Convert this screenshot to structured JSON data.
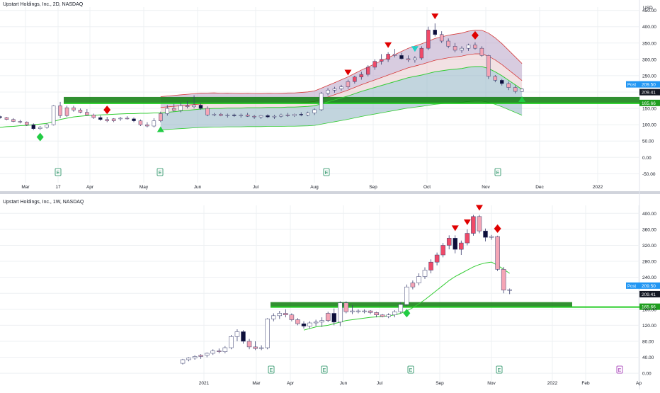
{
  "top": {
    "title": "Upstart Holdings, Inc., 2D, NASDAQ",
    "y_unit": "USD",
    "y_ticks": [
      "450.00",
      "400.00",
      "350.00",
      "300.00",
      "250.00",
      "200.00",
      "150.00",
      "100.00",
      "50.00",
      "0.00",
      "-50.00"
    ],
    "x_ticks": [
      "Mar",
      "17",
      "Apr",
      "May",
      "Jun",
      "Jul",
      "Aug",
      "Sep",
      "Oct",
      "Nov",
      "Dec",
      "2022"
    ],
    "price_labels": {
      "post_tag": "Post",
      "post": "209.50",
      "last": "209.41",
      "level": "165.66"
    },
    "earnings_marker": "E"
  },
  "bottom": {
    "title": "Upstart Holdings, Inc., 1W, NASDAQ",
    "y_ticks": [
      "400.00",
      "360.00",
      "320.00",
      "280.00",
      "240.00",
      "200.00",
      "160.00",
      "120.00",
      "80.00",
      "40.00",
      "0.00"
    ],
    "x_ticks": [
      "2021",
      "Mar",
      "Apr",
      "Jun",
      "Jul",
      "Sep",
      "Nov",
      "2022",
      "Feb",
      "Ap"
    ],
    "price_labels": {
      "post_tag": "Post",
      "post": "209.50",
      "last": "209.41",
      "level": "165.66"
    },
    "earnings_marker": "E"
  },
  "colors": {
    "up": "#ffffff",
    "down": "#0d0f3a",
    "pink": "#f5a5b5",
    "red_candle": "#f04a68",
    "ma_green": "#33cc33",
    "level_green": "#22cc22",
    "zone_green": "#0d7d0d",
    "band_red": "#d63a3a",
    "marker_red": "#e00000",
    "marker_green": "#22cc44",
    "marker_cyan": "#20d0c8",
    "post_blue": "#2196f3",
    "grid": "#eef0f3"
  },
  "chart_data": [
    {
      "type": "candlestick",
      "title": "Upstart Holdings, Inc., 2D, NASDAQ",
      "ylabel": "USD",
      "ylim": [
        -60,
        460
      ],
      "x_ticks": [
        "Mar",
        "17",
        "Apr",
        "May",
        "Jun",
        "Jul",
        "Aug",
        "Sep",
        "Oct",
        "Nov",
        "Dec",
        "2022"
      ],
      "levels": {
        "support_line": 165.66,
        "zone": [
          165.66,
          185
        ]
      },
      "last": 209.41,
      "post": 209.5,
      "ohlc": [
        [
          0,
          125,
          128,
          118,
          122
        ],
        [
          1,
          122,
          124,
          114,
          116
        ],
        [
          2,
          116,
          120,
          108,
          110
        ],
        [
          3,
          110,
          115,
          104,
          108
        ],
        [
          4,
          108,
          110,
          96,
          100
        ],
        [
          5,
          100,
          104,
          84,
          88
        ],
        [
          6,
          88,
          96,
          84,
          92
        ],
        [
          7,
          92,
          104,
          88,
          100
        ],
        [
          8,
          100,
          160,
          98,
          158
        ],
        [
          9,
          158,
          170,
          120,
          128
        ],
        [
          10,
          128,
          158,
          124,
          152
        ],
        [
          11,
          152,
          158,
          140,
          145
        ],
        [
          12,
          145,
          150,
          135,
          138
        ],
        [
          13,
          138,
          148,
          128,
          130
        ],
        [
          14,
          130,
          134,
          118,
          122
        ],
        [
          15,
          122,
          128,
          112,
          116
        ],
        [
          16,
          116,
          124,
          108,
          112
        ],
        [
          17,
          112,
          120,
          108,
          118
        ],
        [
          18,
          118,
          124,
          112,
          120
        ],
        [
          19,
          120,
          126,
          116,
          118
        ],
        [
          20,
          118,
          122,
          108,
          112
        ],
        [
          21,
          112,
          116,
          96,
          100
        ],
        [
          22,
          100,
          108,
          92,
          96
        ],
        [
          23,
          96,
          120,
          92,
          112
        ],
        [
          24,
          112,
          140,
          108,
          134
        ],
        [
          25,
          134,
          160,
          128,
          150
        ],
        [
          26,
          150,
          164,
          140,
          144
        ],
        [
          27,
          144,
          168,
          138,
          158
        ],
        [
          28,
          158,
          172,
          150,
          155
        ],
        [
          29,
          155,
          190,
          150,
          160
        ],
        [
          30,
          160,
          166,
          146,
          150
        ],
        [
          31,
          150,
          156,
          126,
          130
        ],
        [
          32,
          130,
          136,
          126,
          132
        ],
        [
          33,
          132,
          136,
          126,
          128
        ],
        [
          34,
          128,
          134,
          122,
          130
        ],
        [
          35,
          130,
          134,
          124,
          128
        ],
        [
          36,
          128,
          134,
          122,
          130
        ],
        [
          37,
          130,
          136,
          124,
          126
        ],
        [
          38,
          126,
          130,
          118,
          124
        ],
        [
          39,
          124,
          130,
          118,
          128
        ],
        [
          40,
          128,
          132,
          120,
          124
        ],
        [
          41,
          124,
          130,
          118,
          126
        ],
        [
          42,
          126,
          134,
          122,
          130
        ],
        [
          43,
          130,
          136,
          124,
          128
        ],
        [
          44,
          128,
          134,
          124,
          132
        ],
        [
          45,
          132,
          138,
          126,
          130
        ],
        [
          46,
          130,
          140,
          126,
          136
        ],
        [
          47,
          136,
          150,
          130,
          146
        ],
        [
          48,
          146,
          200,
          142,
          196
        ],
        [
          49,
          196,
          212,
          190,
          206
        ],
        [
          50,
          206,
          216,
          198,
          210
        ],
        [
          51,
          210,
          222,
          204,
          216
        ],
        [
          52,
          216,
          238,
          210,
          232
        ],
        [
          53,
          232,
          250,
          226,
          246
        ],
        [
          54,
          246,
          262,
          238,
          254
        ],
        [
          55,
          254,
          282,
          248,
          276
        ],
        [
          56,
          276,
          300,
          268,
          294
        ],
        [
          57,
          294,
          316,
          284,
          300
        ],
        [
          58,
          300,
          322,
          292,
          316
        ],
        [
          59,
          316,
          332,
          306,
          312
        ],
        [
          60,
          312,
          320,
          300,
          302
        ],
        [
          61,
          302,
          312,
          292,
          298
        ],
        [
          62,
          298,
          310,
          290,
          304
        ],
        [
          63,
          304,
          340,
          298,
          334
        ],
        [
          64,
          334,
          400,
          328,
          390
        ],
        [
          65,
          390,
          410,
          370,
          376
        ],
        [
          66,
          376,
          386,
          350,
          356
        ],
        [
          67,
          356,
          364,
          334,
          340
        ],
        [
          68,
          340,
          350,
          322,
          328
        ],
        [
          69,
          328,
          340,
          320,
          334
        ],
        [
          70,
          334,
          348,
          326,
          344
        ],
        [
          71,
          344,
          352,
          330,
          334
        ],
        [
          72,
          334,
          340,
          308,
          312
        ],
        [
          73,
          312,
          314,
          240,
          248
        ],
        [
          74,
          248,
          252,
          230,
          236
        ],
        [
          75,
          236,
          240,
          220,
          226
        ],
        [
          76,
          226,
          232,
          206,
          214
        ],
        [
          77,
          214,
          220,
          196,
          202
        ],
        [
          78,
          202,
          212,
          200,
          209
        ]
      ],
      "series": [
        {
          "name": "",
          "values": [
            92,
            94,
            95,
            97,
            98,
            100,
            102,
            104,
            110,
            116,
            120,
            124,
            126,
            128,
            129,
            130,
            131,
            132,
            133,
            134,
            134,
            135,
            135,
            136,
            136,
            138,
            140,
            142,
            144,
            146,
            148,
            149,
            150,
            150,
            151,
            151,
            151,
            152,
            152,
            152,
            153,
            153,
            153,
            154,
            154,
            155,
            156,
            158,
            164,
            170,
            176,
            182,
            188,
            195,
            202,
            208,
            214,
            220,
            226,
            232,
            238,
            244,
            248,
            252,
            257,
            262,
            265,
            268,
            270,
            272,
            276,
            278,
            278,
            272,
            262,
            250,
            236,
            222,
            208
          ]
        }
      ]
    },
    {
      "type": "candlestick",
      "title": "Upstart Holdings, Inc., 1W, NASDAQ",
      "ylim": [
        -5,
        420
      ],
      "x_ticks": [
        "2021",
        "Mar",
        "Apr",
        "Jun",
        "Jul",
        "Sep",
        "Nov",
        "2022",
        "Feb",
        "Ap"
      ],
      "levels": {
        "support_line": 165.66,
        "zone": [
          165.66,
          178
        ]
      },
      "last": 209.41,
      "post": 209.5,
      "ohlc": [
        [
          0,
          25,
          36,
          22,
          34
        ],
        [
          1,
          34,
          40,
          30,
          38
        ],
        [
          2,
          38,
          45,
          34,
          42
        ],
        [
          3,
          42,
          48,
          36,
          45
        ],
        [
          4,
          45,
          52,
          40,
          50
        ],
        [
          5,
          50,
          60,
          46,
          56
        ],
        [
          6,
          56,
          62,
          50,
          54
        ],
        [
          7,
          54,
          68,
          50,
          64
        ],
        [
          8,
          64,
          96,
          60,
          92
        ],
        [
          9,
          92,
          110,
          80,
          104
        ],
        [
          10,
          104,
          108,
          74,
          80
        ],
        [
          11,
          80,
          86,
          60,
          66
        ],
        [
          12,
          66,
          80,
          58,
          62
        ],
        [
          13,
          62,
          70,
          58,
          64
        ],
        [
          14,
          64,
          138,
          60,
          136
        ],
        [
          15,
          136,
          150,
          130,
          144
        ],
        [
          16,
          144,
          156,
          136,
          150
        ],
        [
          17,
          150,
          160,
          140,
          146
        ],
        [
          18,
          146,
          150,
          130,
          134
        ],
        [
          19,
          134,
          138,
          120,
          124
        ],
        [
          20,
          124,
          130,
          112,
          118
        ],
        [
          21,
          118,
          130,
          112,
          126
        ],
        [
          22,
          126,
          134,
          118,
          128
        ],
        [
          23,
          128,
          140,
          116,
          132
        ],
        [
          24,
          132,
          154,
          128,
          150
        ],
        [
          25,
          150,
          162,
          120,
          128
        ],
        [
          26,
          128,
          180,
          118,
          176
        ],
        [
          27,
          176,
          180,
          150,
          154
        ],
        [
          28,
          154,
          170,
          148,
          156
        ],
        [
          29,
          156,
          160,
          150,
          156
        ],
        [
          30,
          156,
          160,
          150,
          156
        ],
        [
          31,
          156,
          158,
          148,
          152
        ],
        [
          32,
          152,
          154,
          140,
          146
        ],
        [
          33,
          146,
          148,
          140,
          142
        ],
        [
          34,
          142,
          150,
          138,
          146
        ],
        [
          35,
          146,
          158,
          140,
          154
        ],
        [
          36,
          154,
          178,
          150,
          172
        ],
        [
          37,
          172,
          222,
          168,
          216
        ],
        [
          38,
          216,
          232,
          210,
          226
        ],
        [
          39,
          226,
          250,
          220,
          242
        ],
        [
          40,
          242,
          265,
          236,
          258
        ],
        [
          41,
          258,
          285,
          250,
          278
        ],
        [
          42,
          278,
          302,
          270,
          296
        ],
        [
          43,
          296,
          326,
          290,
          320
        ],
        [
          44,
          320,
          345,
          310,
          338
        ],
        [
          45,
          338,
          345,
          300,
          310
        ],
        [
          46,
          310,
          332,
          296,
          326
        ],
        [
          47,
          326,
          360,
          320,
          350
        ],
        [
          48,
          350,
          396,
          344,
          392
        ],
        [
          49,
          392,
          396,
          350,
          356
        ],
        [
          50,
          356,
          362,
          330,
          340
        ],
        [
          51,
          340,
          346,
          334,
          342
        ],
        [
          52,
          342,
          344,
          256,
          260
        ],
        [
          53,
          260,
          266,
          200,
          208
        ],
        [
          54,
          208,
          212,
          198,
          209
        ]
      ],
      "series": [
        {
          "name": "",
          "values": [
            null,
            null,
            null,
            null,
            null,
            null,
            null,
            null,
            null,
            null,
            null,
            null,
            null,
            null,
            null,
            null,
            null,
            null,
            null,
            null,
            108,
            112,
            116,
            118,
            120,
            124,
            128,
            132,
            134,
            136,
            138,
            140,
            141,
            142,
            144,
            146,
            150,
            156,
            164,
            174,
            184,
            196,
            208,
            220,
            232,
            242,
            250,
            258,
            266,
            272,
            276,
            278,
            270,
            260,
            250
          ]
        }
      ]
    }
  ]
}
